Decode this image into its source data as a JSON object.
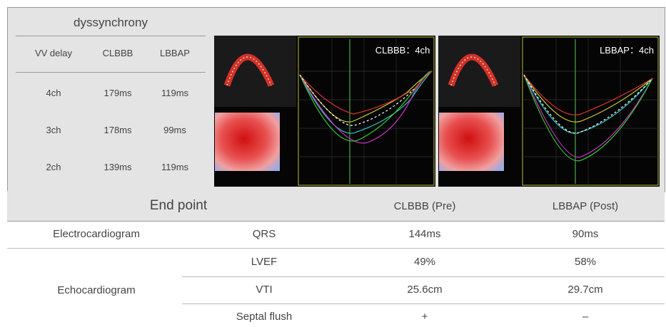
{
  "dyssynchrony": {
    "title": "dyssynchrony",
    "header": [
      "VV delay",
      "CLBBB",
      "LBBAP"
    ],
    "rows": [
      [
        "4ch",
        "179ms",
        "119ms"
      ],
      [
        "3ch",
        "178ms",
        "99ms"
      ],
      [
        "2ch",
        "139ms",
        "119ms"
      ]
    ]
  },
  "images": [
    {
      "label": "CLBBB：4ch"
    },
    {
      "label": "LBBAP：4ch"
    }
  ],
  "table": {
    "header": [
      "End point",
      "CLBBB (Pre)",
      "LBBAP (Post)"
    ],
    "groups": [
      "Electrocardiogram",
      "Echocardiogram"
    ],
    "rows": [
      [
        "QRS",
        "144ms",
        "90ms"
      ],
      [
        "LVEF",
        "49%",
        "58%"
      ],
      [
        "VTI",
        "25.6cm",
        "29.7cm"
      ],
      [
        "Septal flush",
        "+",
        "–"
      ]
    ]
  }
}
